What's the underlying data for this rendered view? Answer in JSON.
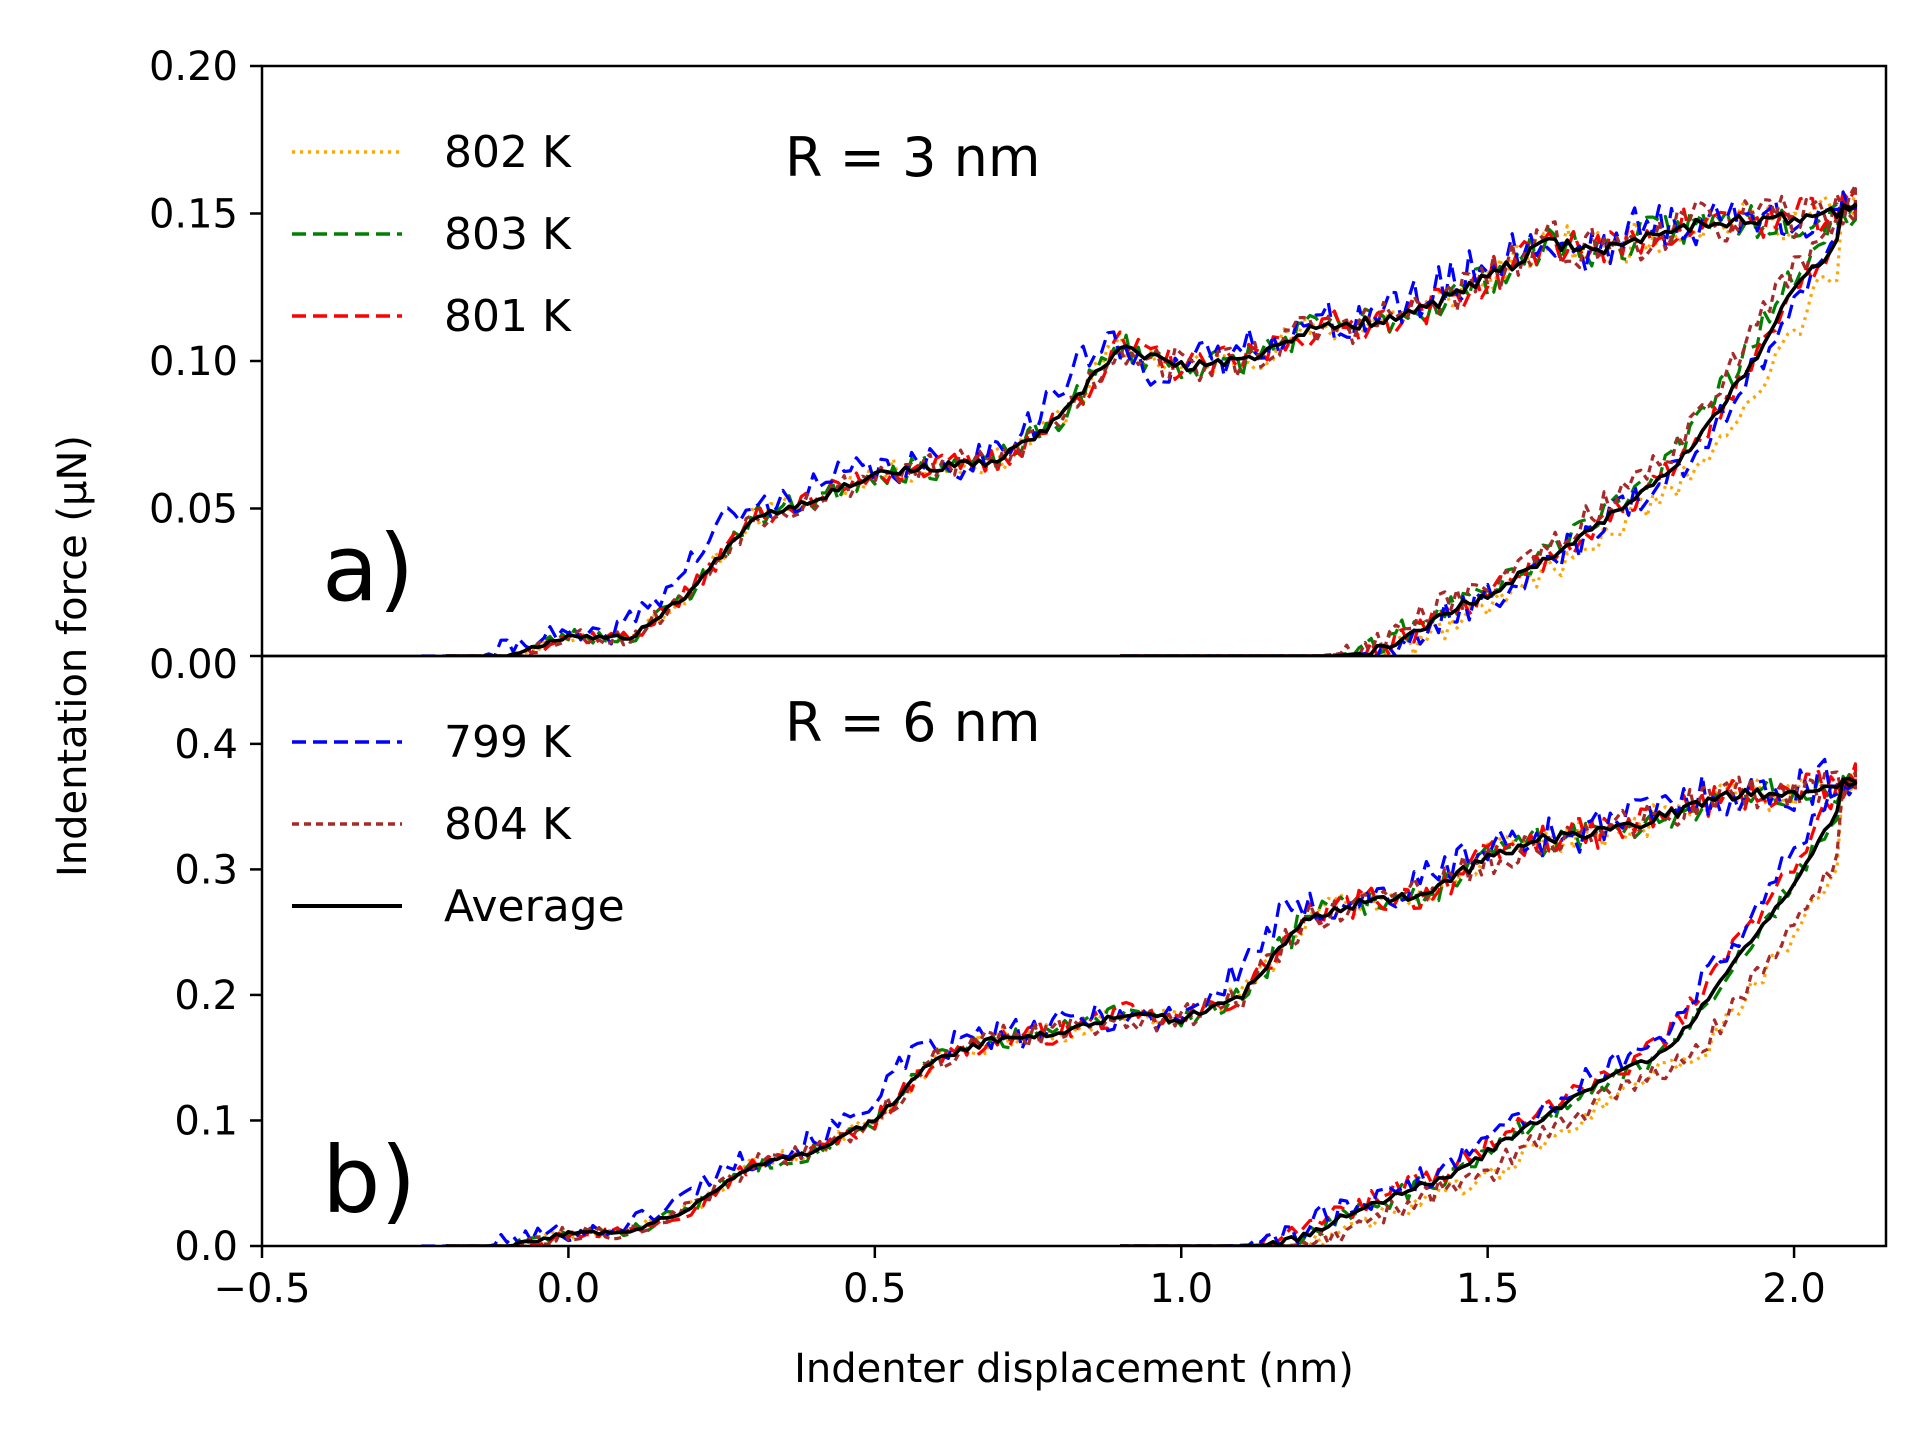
{
  "chart_data": [
    {
      "type": "line",
      "panel_label": "a)",
      "annotation": "R = 3 nm",
      "xlim": [
        -0.5,
        2.15
      ],
      "ylim": [
        0.0,
        0.2
      ],
      "yticks": [
        0.0,
        0.05,
        0.1,
        0.15,
        0.2
      ],
      "ytick_labels": [
        "0.00",
        "0.05",
        "0.10",
        "0.15",
        "0.20"
      ],
      "grid": false,
      "legend": {
        "placement": "top-left",
        "entries": [
          {
            "label": "802 K",
            "color": "#ffa500",
            "style": "dotted"
          },
          {
            "label": "803 K",
            "color": "#008000",
            "style": "dashed"
          },
          {
            "label": "801 K",
            "color": "#ff0000",
            "style": "dashed"
          }
        ]
      },
      "loading_profile": {
        "x": [
          -0.2,
          -0.1,
          0.0,
          0.1,
          0.2,
          0.3,
          0.4,
          0.5,
          0.6,
          0.7,
          0.8,
          0.9,
          1.0,
          1.1,
          1.2,
          1.3,
          1.4,
          1.5,
          1.6,
          1.7,
          1.8,
          1.9,
          2.0,
          2.1
        ],
        "y": [
          0.0,
          0.0,
          0.007,
          0.006,
          0.022,
          0.047,
          0.053,
          0.062,
          0.064,
          0.066,
          0.08,
          0.105,
          0.098,
          0.1,
          0.11,
          0.113,
          0.118,
          0.128,
          0.14,
          0.138,
          0.145,
          0.148,
          0.148,
          0.152
        ]
      },
      "unloading_profile": {
        "x": [
          2.1,
          2.05,
          2.0,
          1.95,
          1.9,
          1.85,
          1.8,
          1.75,
          1.7,
          1.65,
          1.6,
          1.55,
          1.5,
          1.45,
          1.4,
          1.35,
          1.3,
          1.25,
          1.2,
          1.15,
          1.1,
          1.05,
          1.0,
          0.9
        ],
        "y": [
          0.152,
          0.135,
          0.125,
          0.105,
          0.09,
          0.075,
          0.063,
          0.055,
          0.048,
          0.04,
          0.033,
          0.027,
          0.02,
          0.017,
          0.01,
          0.005,
          0.001,
          0.0,
          0.0,
          0.0,
          0.0,
          0.0,
          0.0,
          0.0
        ]
      },
      "series": [
        {
          "name": "802 K",
          "color": "#ffa500",
          "style": "dotted",
          "seed": 11,
          "dx": 0.0,
          "y_scale": 1.0,
          "unload_shift": 0.04,
          "noise": 0.006
        },
        {
          "name": "803 K",
          "color": "#008000",
          "style": "dashed",
          "seed": 23,
          "dx": 0.0,
          "y_scale": 1.0,
          "unload_shift": -0.02,
          "noise": 0.006
        },
        {
          "name": "801 K",
          "color": "#ff0000",
          "style": "dashed",
          "seed": 37,
          "dx": 0.0,
          "y_scale": 1.0,
          "unload_shift": 0.0,
          "noise": 0.006
        },
        {
          "name": "799 K",
          "color": "#0000ff",
          "style": "dashed",
          "seed": 41,
          "dx": -0.04,
          "y_scale": 1.0,
          "unload_shift": 0.01,
          "noise": 0.008
        },
        {
          "name": "804 K",
          "color": "#a52a2a",
          "style": "dashed-short",
          "seed": 53,
          "dx": 0.0,
          "y_scale": 1.0,
          "unload_shift": -0.03,
          "noise": 0.007
        },
        {
          "name": "Average",
          "color": "#000000",
          "style": "solid",
          "seed": 67,
          "dx": 0.0,
          "y_scale": 1.0,
          "unload_shift": 0.0,
          "noise": 0.002
        }
      ]
    },
    {
      "type": "line",
      "panel_label": "b)",
      "annotation": "R = 6 nm",
      "xlim": [
        -0.5,
        2.15
      ],
      "ylim": [
        0.0,
        0.47
      ],
      "yticks": [
        0.0,
        0.1,
        0.2,
        0.3,
        0.4
      ],
      "ytick_labels": [
        "0.0",
        "0.1",
        "0.2",
        "0.3",
        "0.4"
      ],
      "xticks": [
        -0.5,
        0.0,
        0.5,
        1.0,
        1.5,
        2.0
      ],
      "xtick_labels": [
        "−0.5",
        "0.0",
        "0.5",
        "1.0",
        "1.5",
        "2.0"
      ],
      "xlabel": "Indenter displacement (nm)",
      "grid": false,
      "legend": {
        "placement": "top-left",
        "entries": [
          {
            "label": "799 K",
            "color": "#0000ff",
            "style": "dashed"
          },
          {
            "label": "804 K",
            "color": "#a52a2a",
            "style": "dashed-short"
          },
          {
            "label": "Average",
            "color": "#000000",
            "style": "solid"
          }
        ]
      },
      "loading_profile": {
        "x": [
          -0.2,
          -0.1,
          0.0,
          0.1,
          0.2,
          0.3,
          0.4,
          0.5,
          0.6,
          0.7,
          0.8,
          0.9,
          1.0,
          1.1,
          1.2,
          1.3,
          1.4,
          1.5,
          1.6,
          1.7,
          1.8,
          1.9,
          2.0,
          2.1
        ],
        "y": [
          0.0,
          0.0,
          0.01,
          0.012,
          0.03,
          0.065,
          0.075,
          0.1,
          0.15,
          0.165,
          0.17,
          0.185,
          0.18,
          0.2,
          0.26,
          0.275,
          0.28,
          0.31,
          0.325,
          0.33,
          0.345,
          0.36,
          0.36,
          0.37
        ]
      },
      "unloading_profile": {
        "x": [
          2.1,
          2.05,
          2.0,
          1.95,
          1.9,
          1.85,
          1.8,
          1.75,
          1.7,
          1.65,
          1.6,
          1.55,
          1.5,
          1.45,
          1.4,
          1.35,
          1.3,
          1.25,
          1.2,
          1.15,
          1.1,
          1.05,
          1.0,
          0.9
        ],
        "y": [
          0.37,
          0.33,
          0.29,
          0.255,
          0.225,
          0.19,
          0.16,
          0.145,
          0.135,
          0.12,
          0.105,
          0.09,
          0.075,
          0.058,
          0.05,
          0.04,
          0.03,
          0.02,
          0.008,
          0.001,
          0.0,
          0.0,
          0.0,
          0.0
        ]
      },
      "series": [
        {
          "name": "802 K",
          "color": "#ffa500",
          "style": "dotted",
          "seed": 71,
          "dx": 0.0,
          "y_scale": 1.0,
          "unload_shift": 0.06,
          "noise": 0.012
        },
        {
          "name": "803 K",
          "color": "#008000",
          "style": "dashed",
          "seed": 83,
          "dx": 0.0,
          "y_scale": 1.0,
          "unload_shift": 0.0,
          "noise": 0.012
        },
        {
          "name": "801 K",
          "color": "#ff0000",
          "style": "dashed",
          "seed": 97,
          "dx": 0.0,
          "y_scale": 1.0,
          "unload_shift": -0.02,
          "noise": 0.012
        },
        {
          "name": "799 K",
          "color": "#0000ff",
          "style": "dashed",
          "seed": 101,
          "dx": -0.04,
          "y_scale": 1.0,
          "unload_shift": -0.03,
          "noise": 0.016
        },
        {
          "name": "804 K",
          "color": "#a52a2a",
          "style": "dashed-short",
          "seed": 113,
          "dx": 0.0,
          "y_scale": 1.0,
          "unload_shift": 0.05,
          "noise": 0.014
        },
        {
          "name": "Average",
          "color": "#000000",
          "style": "solid",
          "seed": 127,
          "dx": 0.0,
          "y_scale": 1.0,
          "unload_shift": 0.0,
          "noise": 0.004
        }
      ]
    }
  ],
  "shared_ylabel": "Indentation force (μN)"
}
